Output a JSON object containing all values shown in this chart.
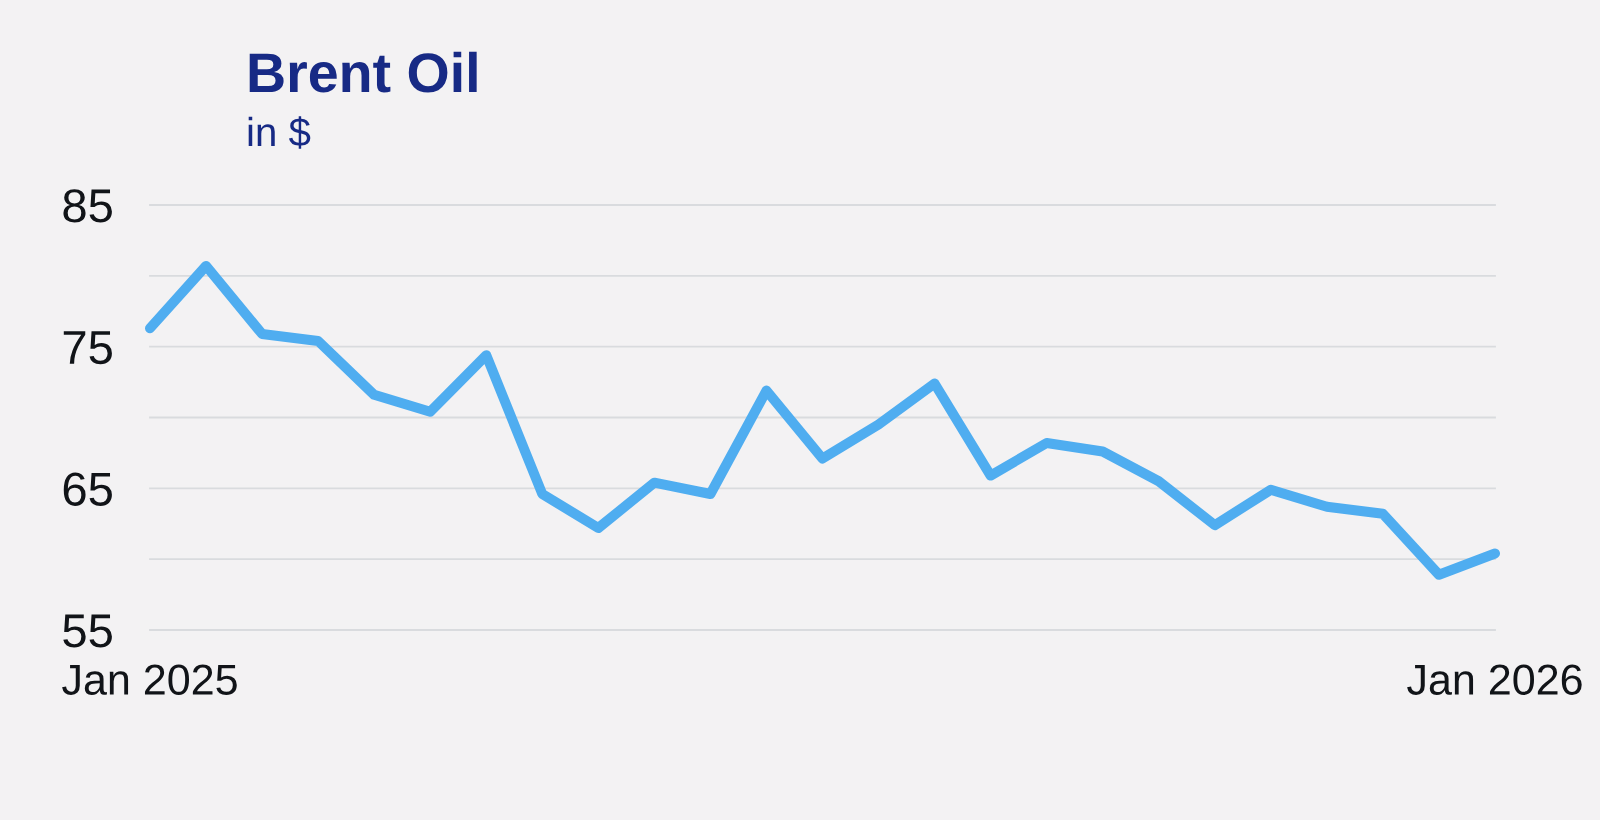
{
  "chart_data": {
    "type": "line",
    "title": "Brent Oil",
    "subtitle": "in $",
    "categories": [
      "Jan 2025",
      null,
      null,
      null,
      null,
      null,
      null,
      null,
      null,
      null,
      null,
      null,
      null,
      null,
      null,
      null,
      null,
      null,
      null,
      null,
      null,
      null,
      null,
      null,
      "Jan 2026"
    ],
    "series": [
      {
        "color": "#4fadf0",
        "values": [
          76.3,
          80.7,
          75.9,
          75.4,
          71.6,
          70.4,
          74.4,
          64.6,
          62.2,
          65.4,
          64.6,
          71.9,
          67.1,
          69.5,
          72.4,
          65.9,
          68.2,
          67.6,
          65.5,
          62.4,
          64.9,
          63.7,
          63.2,
          58.9,
          60.4
        ]
      }
    ],
    "ylim": [
      55,
      85
    ],
    "yticks": [
      55,
      {
        "value": 60,
        "label": null
      },
      65,
      {
        "value": 70,
        "label": null
      },
      75,
      {
        "value": 80,
        "label": null
      },
      85
    ],
    "grid": "y",
    "line_style": "solid"
  }
}
